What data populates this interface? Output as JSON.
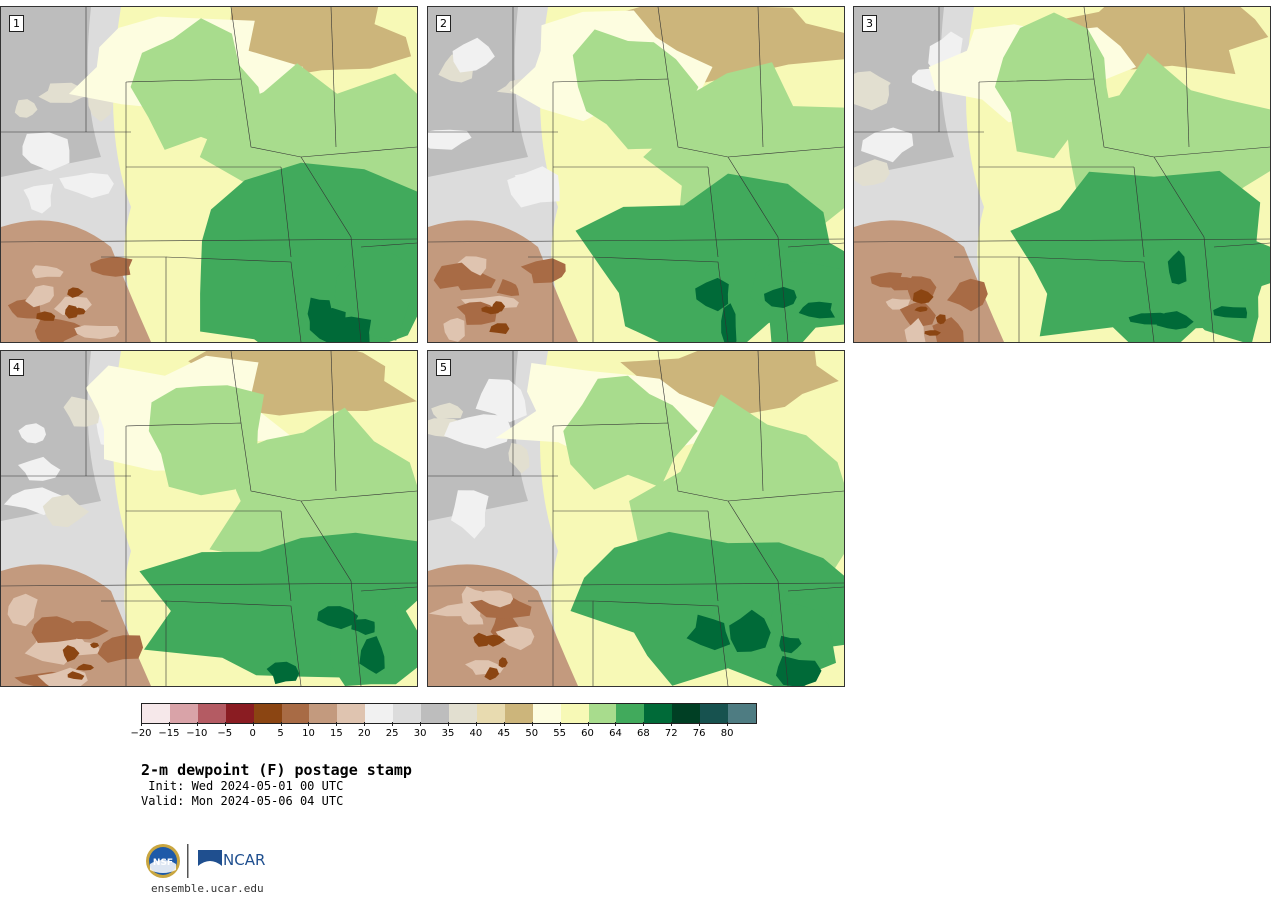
{
  "panels": [
    {
      "label": "1",
      "seed": 11,
      "wet": 0.55
    },
    {
      "label": "2",
      "seed": 23,
      "wet": 0.45
    },
    {
      "label": "3",
      "seed": 37,
      "wet": 0.5
    },
    {
      "label": "4",
      "seed": 41,
      "wet": 0.48
    },
    {
      "label": "5",
      "seed": 53,
      "wet": 0.42
    }
  ],
  "colorbar": {
    "colors": [
      "#f6e8ea",
      "#d9a3a8",
      "#b45b63",
      "#8a1c22",
      "#8b4512",
      "#a86b45",
      "#c39a7e",
      "#dfc4b0",
      "#f1f1f1",
      "#dcdcdc",
      "#bdbdbd",
      "#e2dfd0",
      "#e8dbb0",
      "#ccb57b",
      "#fdfde0",
      "#f7f9b6",
      "#a8dc8d",
      "#41aa5c",
      "#006a38",
      "#003f24",
      "#17524f",
      "#4e7c82"
    ],
    "ticks": [
      "−20",
      "−15",
      "−10",
      "−5",
      "0",
      "5",
      "10",
      "15",
      "20",
      "25",
      "30",
      "35",
      "40",
      "45",
      "50",
      "55",
      "60",
      "64",
      "68",
      "72",
      "76",
      "80"
    ]
  },
  "title": "2-m dewpoint (F) postage stamp",
  "init": " Init: Wed 2024-05-01 00 UTC",
  "valid": "Valid: Mon 2024-05-06 04 UTC",
  "logos": {
    "left": "NSF",
    "right": "NCAR",
    "left_color": "#1e5aa8",
    "right_color": "#1f4f8f"
  },
  "site": "ensemble.ucar.edu"
}
